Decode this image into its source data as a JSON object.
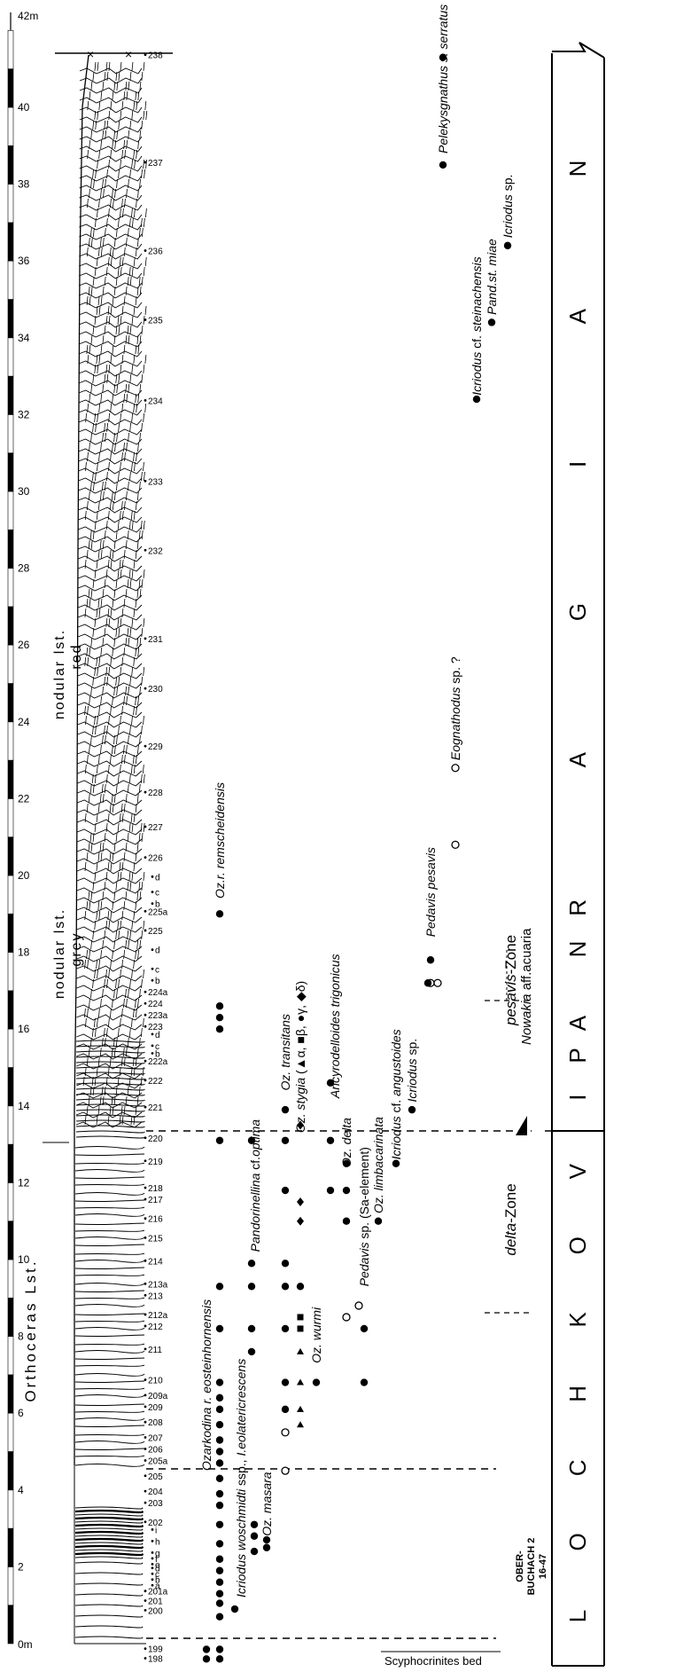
{
  "scale": {
    "top_label": "42m",
    "bottom_label": "0m",
    "ticks": [
      "2",
      "4",
      "6",
      "8",
      "10",
      "12",
      "14",
      "16",
      "18",
      "20",
      "22",
      "24",
      "26",
      "28",
      "30",
      "32",
      "34",
      "36",
      "38",
      "40"
    ]
  },
  "lithology": {
    "upper_unit": "nodular lst. red",
    "upper_line1": "nodular lst.",
    "upper_line2": "red",
    "middle_unit": "nodular lst. grey",
    "middle_line1": "nodular lst.",
    "middle_line2": "grey",
    "lower_unit": "Orthoceras Lst."
  },
  "samples": [
    {
      "label": "238",
      "m": 41.3
    },
    {
      "label": "237",
      "m": 38.5
    },
    {
      "label": "236",
      "m": 36.2
    },
    {
      "label": "235",
      "m": 34.4
    },
    {
      "label": "234",
      "m": 32.3
    },
    {
      "label": "233",
      "m": 30.2
    },
    {
      "label": "232",
      "m": 28.4
    },
    {
      "label": "231",
      "m": 26.1
    },
    {
      "label": "230",
      "m": 24.8
    },
    {
      "label": "229",
      "m": 23.3
    },
    {
      "label": "228",
      "m": 22.1
    },
    {
      "label": "227",
      "m": 21.2
    },
    {
      "label": "226",
      "m": 20.4
    },
    {
      "label": "d",
      "m": 19.9
    },
    {
      "label": "c",
      "m": 19.5
    },
    {
      "label": "b",
      "m": 19.2
    },
    {
      "label": "225a",
      "m": 19.0
    },
    {
      "label": "225",
      "m": 18.5
    },
    {
      "label": "d",
      "m": 18.0
    },
    {
      "label": "c",
      "m": 17.5
    },
    {
      "label": "b",
      "m": 17.2
    },
    {
      "label": "224a",
      "m": 16.9
    },
    {
      "label": "224",
      "m": 16.6
    },
    {
      "label": "223a",
      "m": 16.3
    },
    {
      "label": "223",
      "m": 16.0
    },
    {
      "label": "d",
      "m": 15.8
    },
    {
      "label": "c",
      "m": 15.5
    },
    {
      "label": "b",
      "m": 15.3
    },
    {
      "label": "222a",
      "m": 15.1
    },
    {
      "label": "222",
      "m": 14.6
    },
    {
      "label": "221",
      "m": 13.9
    },
    {
      "label": "220",
      "m": 13.1
    },
    {
      "label": "219",
      "m": 12.5
    },
    {
      "label": "218",
      "m": 11.8
    },
    {
      "label": "217",
      "m": 11.5
    },
    {
      "label": "216",
      "m": 11.0
    },
    {
      "label": "215",
      "m": 10.5
    },
    {
      "label": "214",
      "m": 9.9
    },
    {
      "label": "213a",
      "m": 9.3
    },
    {
      "label": "213",
      "m": 9.0
    },
    {
      "label": "212a",
      "m": 8.5
    },
    {
      "label": "212",
      "m": 8.2
    },
    {
      "label": "211",
      "m": 7.6
    },
    {
      "label": "210",
      "m": 6.8
    },
    {
      "label": "209a",
      "m": 6.4
    },
    {
      "label": "209",
      "m": 6.1
    },
    {
      "label": "208",
      "m": 5.7
    },
    {
      "label": "207",
      "m": 5.3
    },
    {
      "label": "206",
      "m": 5.0
    },
    {
      "label": "205a",
      "m": 4.7
    },
    {
      "label": "205",
      "m": 4.3
    },
    {
      "label": "204",
      "m": 3.9
    },
    {
      "label": "203",
      "m": 3.6
    },
    {
      "label": "202",
      "m": 3.1
    },
    {
      "label": "i",
      "m": 2.9
    },
    {
      "label": "h",
      "m": 2.6
    },
    {
      "label": "g",
      "m": 2.3
    },
    {
      "label": "f",
      "m": 2.15
    },
    {
      "label": "e",
      "m": 2.0
    },
    {
      "label": "d",
      "m": 1.9
    },
    {
      "label": "c",
      "m": 1.75
    },
    {
      "label": "b",
      "m": 1.6
    },
    {
      "label": "a",
      "m": 1.45
    },
    {
      "label": "201a",
      "m": 1.3
    },
    {
      "label": "201",
      "m": 1.05
    },
    {
      "label": "200",
      "m": 0.8
    },
    {
      "label": "199",
      "m": -0.2
    },
    {
      "label": "198",
      "m": -0.45
    }
  ],
  "taxa": [
    {
      "name": "Ozarkodina r. eosteinhornensis",
      "parts": [
        {
          "t": "Ozarkodina ",
          "i": true
        },
        {
          "t": "r. eosteinhornensis",
          "i": true
        }
      ],
      "x": 233,
      "base": 4.5
    },
    {
      "name": "Icriodus woschmidti ssp., I.eolatericrescens",
      "parts": [
        {
          "t": "Icriodus woschmidti ",
          "i": true
        },
        {
          "t": "ssp.,",
          "i": false
        },
        {
          "t": " I.eolatericrescens",
          "i": true
        }
      ],
      "x": 272,
      "base": 1.2
    },
    {
      "name": "Oz. masara",
      "parts": [
        {
          "t": "Oz. masara",
          "i": true
        }
      ],
      "x": 301,
      "base": 2.8
    },
    {
      "name": "Pandorinellina cf.optima",
      "parts": [
        {
          "t": "Pandorinellina ",
          "i": true
        },
        {
          "t": "cf.",
          "i": false
        },
        {
          "t": "optima",
          "i": true
        }
      ],
      "x": 288,
      "base": 10.2
    },
    {
      "name": "Oz.r. remscheidensis",
      "parts": [
        {
          "t": "Oz.r. remscheidensis",
          "i": true
        }
      ],
      "x": 248,
      "base": 19.4
    },
    {
      "name": "Oz. transitans",
      "parts": [
        {
          "t": "Oz. transitans",
          "i": true
        }
      ],
      "x": 322,
      "base": 14.4
    },
    {
      "name": "Oz. stygia (▲α, ■β, ●γ, ◆δ)",
      "parts": [
        {
          "t": "Oz. stygia ",
          "i": true
        },
        {
          "t": "(▲α, ■β, ●γ, ◆δ)",
          "i": false
        }
      ],
      "x": 339,
      "base": 13.3
    },
    {
      "name": "Oz. wurmi",
      "parts": [
        {
          "t": "Oz. wurmi",
          "i": true
        }
      ],
      "x": 357,
      "base": 7.3
    },
    {
      "name": "Ancyrodelloides trigonicus",
      "parts": [
        {
          "t": "Ancyrodelloides trigonicus",
          "i": true
        }
      ],
      "x": 378,
      "base": 14.2
    },
    {
      "name": "Oz. delta",
      "parts": [
        {
          "t": "Oz. delta",
          "i": true
        }
      ],
      "x": 391,
      "base": 12.4
    },
    {
      "name": "Pedavis sp. (Sa-element)",
      "parts": [
        {
          "t": "Pedavis ",
          "i": true
        },
        {
          "t": "sp. (Sa-element)",
          "i": false
        }
      ],
      "x": 411,
      "base": 9.3
    },
    {
      "name": "Oz. limbacarinata",
      "parts": [
        {
          "t": "Oz. limbacarinata",
          "i": true
        }
      ],
      "x": 427,
      "base": 11.2
    },
    {
      "name": "Icriodus cf. angustoides",
      "parts": [
        {
          "t": "Icriodus ",
          "i": true
        },
        {
          "t": "cf.",
          "i": false
        },
        {
          "t": " angustoides",
          "i": true
        }
      ],
      "x": 447,
      "base": 12.6
    },
    {
      "name": "Icriodus sp.",
      "parts": [
        {
          "t": "Icriodus ",
          "i": true
        },
        {
          "t": "sp.",
          "i": false
        }
      ],
      "x": 465,
      "base": 14.1
    },
    {
      "name": "Pedavis pesavis",
      "parts": [
        {
          "t": "Pedavis pesavis",
          "i": true
        }
      ],
      "x": 486,
      "base": 18.4
    },
    {
      "name": "Eognathodus sp. ?",
      "parts": [
        {
          "t": "Eognathodus ",
          "i": true
        },
        {
          "t": "sp. ?",
          "i": false
        }
      ],
      "x": 514,
      "base": 23.0
    },
    {
      "name": "Pelekysgnathus s. serratus",
      "parts": [
        {
          "t": "Pelekysgnathus s. serratus",
          "i": true
        }
      ],
      "x": 500,
      "base": 38.8
    },
    {
      "name": "Icriodus cf. steinachensis",
      "parts": [
        {
          "t": "Icriodus ",
          "i": true
        },
        {
          "t": "cf.",
          "i": false
        },
        {
          "t": " steinachensis",
          "i": true
        }
      ],
      "x": 538,
      "base": 32.5
    },
    {
      "name": "Pand.st. miae",
      "parts": [
        {
          "t": "Pand.st. miae",
          "i": true
        }
      ],
      "x": 555,
      "base": 34.6
    },
    {
      "name": "Icriodus sp.",
      "parts": [
        {
          "t": "Icriodus ",
          "i": true
        },
        {
          "t": "sp.",
          "i": false
        }
      ],
      "x": 573,
      "base": 36.6
    }
  ],
  "occurrences": [
    {
      "x": 233,
      "m": -0.15,
      "s": "dot"
    },
    {
      "x": 233,
      "m": -0.4,
      "s": "dot"
    },
    {
      "x": 248,
      "m": -0.15,
      "s": "dot"
    },
    {
      "x": 248,
      "m": -0.4,
      "s": "dot"
    },
    {
      "x": 248,
      "m": 0.7,
      "s": "dot"
    },
    {
      "x": 248,
      "m": 1.05,
      "s": "dot"
    },
    {
      "x": 248,
      "m": 1.3,
      "s": "dot"
    },
    {
      "x": 248,
      "m": 1.6,
      "s": "dot"
    },
    {
      "x": 248,
      "m": 1.9,
      "s": "dot"
    },
    {
      "x": 248,
      "m": 2.2,
      "s": "dot"
    },
    {
      "x": 248,
      "m": 2.6,
      "s": "dot"
    },
    {
      "x": 248,
      "m": 3.1,
      "s": "dot"
    },
    {
      "x": 248,
      "m": 3.6,
      "s": "dot"
    },
    {
      "x": 248,
      "m": 3.9,
      "s": "dot"
    },
    {
      "x": 248,
      "m": 4.3,
      "s": "dot"
    },
    {
      "x": 248,
      "m": 4.7,
      "s": "dot"
    },
    {
      "x": 248,
      "m": 5.0,
      "s": "dot"
    },
    {
      "x": 248,
      "m": 5.3,
      "s": "dot"
    },
    {
      "x": 248,
      "m": 5.7,
      "s": "dot"
    },
    {
      "x": 248,
      "m": 6.1,
      "s": "dot"
    },
    {
      "x": 248,
      "m": 6.4,
      "s": "dot"
    },
    {
      "x": 248,
      "m": 6.8,
      "s": "dot"
    },
    {
      "x": 248,
      "m": 8.2,
      "s": "dot"
    },
    {
      "x": 248,
      "m": 9.3,
      "s": "dot"
    },
    {
      "x": 248,
      "m": 13.1,
      "s": "dot"
    },
    {
      "x": 248,
      "m": 16.0,
      "s": "dot"
    },
    {
      "x": 248,
      "m": 16.3,
      "s": "dot"
    },
    {
      "x": 248,
      "m": 16.6,
      "s": "dot"
    },
    {
      "x": 248,
      "m": 19.0,
      "s": "dot"
    },
    {
      "x": 265,
      "m": 0.9,
      "s": "dot"
    },
    {
      "x": 287,
      "m": 2.4,
      "s": "dot"
    },
    {
      "x": 287,
      "m": 2.8,
      "s": "dot"
    },
    {
      "x": 287,
      "m": 3.1,
      "s": "dot"
    },
    {
      "x": 301,
      "m": 2.5,
      "s": "dot"
    },
    {
      "x": 301,
      "m": 2.7,
      "s": "dot"
    },
    {
      "x": 284,
      "m": 7.6,
      "s": "dot"
    },
    {
      "x": 284,
      "m": 8.2,
      "s": "dot"
    },
    {
      "x": 284,
      "m": 9.3,
      "s": "dot"
    },
    {
      "x": 284,
      "m": 9.9,
      "s": "dot"
    },
    {
      "x": 284,
      "m": 13.1,
      "s": "dot"
    },
    {
      "x": 322,
      "m": 4.5,
      "s": "open"
    },
    {
      "x": 322,
      "m": 5.5,
      "s": "open"
    },
    {
      "x": 322,
      "m": 6.1,
      "s": "dot"
    },
    {
      "x": 322,
      "m": 6.8,
      "s": "dot"
    },
    {
      "x": 322,
      "m": 8.2,
      "s": "dot"
    },
    {
      "x": 322,
      "m": 9.3,
      "s": "dot"
    },
    {
      "x": 322,
      "m": 9.9,
      "s": "dot"
    },
    {
      "x": 322,
      "m": 11.8,
      "s": "dot"
    },
    {
      "x": 322,
      "m": 13.1,
      "s": "dot"
    },
    {
      "x": 322,
      "m": 13.9,
      "s": "dot"
    },
    {
      "x": 339,
      "m": 5.7,
      "s": "tri"
    },
    {
      "x": 339,
      "m": 6.1,
      "s": "tri"
    },
    {
      "x": 339,
      "m": 6.8,
      "s": "tri"
    },
    {
      "x": 339,
      "m": 7.6,
      "s": "tri"
    },
    {
      "x": 339,
      "m": 8.2,
      "s": "sq"
    },
    {
      "x": 339,
      "m": 8.5,
      "s": "sq"
    },
    {
      "x": 339,
      "m": 9.3,
      "s": "dot"
    },
    {
      "x": 339,
      "m": 11.0,
      "s": "dia"
    },
    {
      "x": 339,
      "m": 11.5,
      "s": "dia"
    },
    {
      "x": 339,
      "m": 13.5,
      "s": "dia"
    },
    {
      "x": 357,
      "m": 6.8,
      "s": "dot"
    },
    {
      "x": 373,
      "m": 11.8,
      "s": "dot"
    },
    {
      "x": 373,
      "m": 13.1,
      "s": "dot"
    },
    {
      "x": 373,
      "m": 14.6,
      "s": "dot"
    },
    {
      "x": 391,
      "m": 8.5,
      "s": "open"
    },
    {
      "x": 391,
      "m": 11.0,
      "s": "dot"
    },
    {
      "x": 391,
      "m": 11.8,
      "s": "dot"
    },
    {
      "x": 391,
      "m": 12.5,
      "s": "dot"
    },
    {
      "x": 411,
      "m": 8.2,
      "s": "dot"
    },
    {
      "x": 411,
      "m": 6.8,
      "s": "dot"
    },
    {
      "x": 405,
      "m": 8.8,
      "s": "open"
    },
    {
      "x": 427,
      "m": 11.0,
      "s": "dot"
    },
    {
      "x": 447,
      "m": 12.5,
      "s": "dot"
    },
    {
      "x": 465,
      "m": 13.9,
      "s": "dot"
    },
    {
      "x": 486,
      "m": 17.2,
      "s": "open"
    },
    {
      "x": 494,
      "m": 17.2,
      "s": "open"
    },
    {
      "x": 486,
      "m": 17.8,
      "s": "dot"
    },
    {
      "x": 483,
      "m": 17.2,
      "s": "dot"
    },
    {
      "x": 514,
      "m": 20.8,
      "s": "open"
    },
    {
      "x": 514,
      "m": 22.8,
      "s": "open"
    },
    {
      "x": 500,
      "m": 38.5,
      "s": "dot"
    },
    {
      "x": 500,
      "m": 41.3,
      "s": "dot"
    },
    {
      "x": 538,
      "m": 32.4,
      "s": "dot"
    },
    {
      "x": 555,
      "m": 34.4,
      "s": "dot"
    },
    {
      "x": 573,
      "m": 36.4,
      "s": "dot"
    }
  ],
  "zones": {
    "pesavis": "pesavis-Zone",
    "pesavis_name": "pesavis",
    "pesavis_suffix": "-Zone",
    "delta": "delta-Zone",
    "delta_name": "delta",
    "delta_suffix": "-Zone",
    "nowakia": "Nowakia aff.acuaria",
    "nowakia_name": "Nowakia",
    "nowakia_suffix": " aff.acuaria",
    "oberbuchach_line1": "OBER-",
    "oberbuchach_line2": "BUCHACH 2",
    "oberbuchach_line3": "16-47"
  },
  "stages": {
    "upper": "PRAGIAN",
    "upper_letters": [
      "P",
      "R",
      "A",
      "G",
      "I",
      "A",
      "N"
    ],
    "lower": "LOCHKOVIAN",
    "lower_letters": [
      "L",
      "O",
      "C",
      "H",
      "K",
      "O",
      "V",
      "I",
      "A",
      "N"
    ]
  },
  "base_bed": "Scyphocrinites bed",
  "colors": {
    "ink": "#000000",
    "paper": "#ffffff"
  }
}
